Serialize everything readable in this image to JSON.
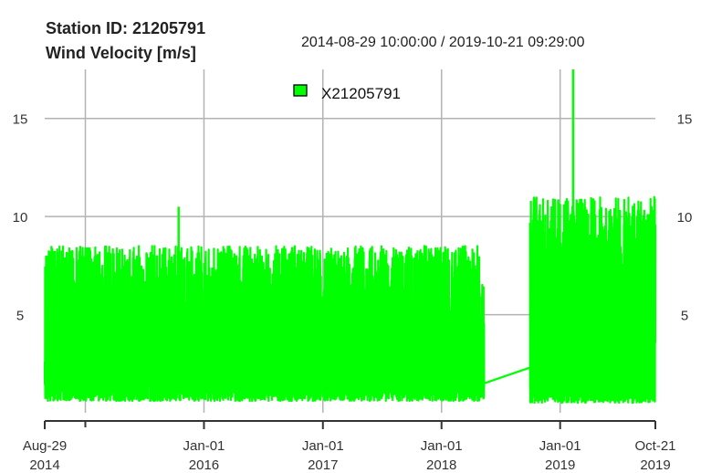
{
  "header": {
    "station_label": "Station ID: 21205791",
    "variable_label": "Wind Velocity [m/s]",
    "date_range": "2014-08-29 10:00:00 / 2019-10-21 09:29:00"
  },
  "chart_data": {
    "type": "line",
    "title": "Station ID: 21205791",
    "subtitle": "2014-08-29 10:00:00 / 2019-10-21 09:29:00",
    "ylabel": "Wind Velocity [m/s]",
    "xlabel": "",
    "xlim": [
      "2014-08-29",
      "2019-10-21"
    ],
    "ylim": [
      0,
      17.5
    ],
    "yticks": [
      5,
      10,
      15
    ],
    "xticks": [
      {
        "date": "2014-08-29",
        "label1": "Aug-29",
        "label2": "2014"
      },
      {
        "date": "2016-01-01",
        "label1": "Jan-01",
        "label2": "2016"
      },
      {
        "date": "2017-01-01",
        "label1": "Jan-01",
        "label2": "2017"
      },
      {
        "date": "2018-01-01",
        "label1": "Jan-01",
        "label2": "2018"
      },
      {
        "date": "2019-01-01",
        "label1": "Jan-01",
        "label2": "2019"
      },
      {
        "date": "2019-10-21",
        "label1": "Oct-21",
        "label2": "2019"
      }
    ],
    "minor_ticks": [
      "2015-01-01"
    ],
    "vertical_grid": [
      "2015-01-01",
      "2016-01-01",
      "2017-01-01",
      "2018-01-01",
      "2019-01-01"
    ],
    "grid": true,
    "legend_position": "top-center",
    "series": [
      {
        "name": "X21205791",
        "color": "#00ff00",
        "segments": [
          {
            "from": "2014-08-29",
            "to": "2018-04-28",
            "min": 0.6,
            "max_typical": 8.5,
            "max_observed": 10.5
          },
          {
            "from": "2018-05-01",
            "to": "2018-05-12",
            "min": 0.7,
            "max_typical": 7.0,
            "max_observed": 7.0
          },
          {
            "from": "2018-09-30",
            "to": "2019-10-21",
            "min": 0.5,
            "max_typical": 11.0,
            "max_observed": 17.5
          }
        ],
        "gap": {
          "from": "2018-05-12",
          "to": "2018-09-30",
          "y_from": 1.5,
          "y_to": 2.3
        },
        "notable_points": [
          {
            "x": "2015-10-15",
            "y": 10.5
          },
          {
            "x": "2019-02-10",
            "y": 17.5
          }
        ]
      }
    ]
  }
}
